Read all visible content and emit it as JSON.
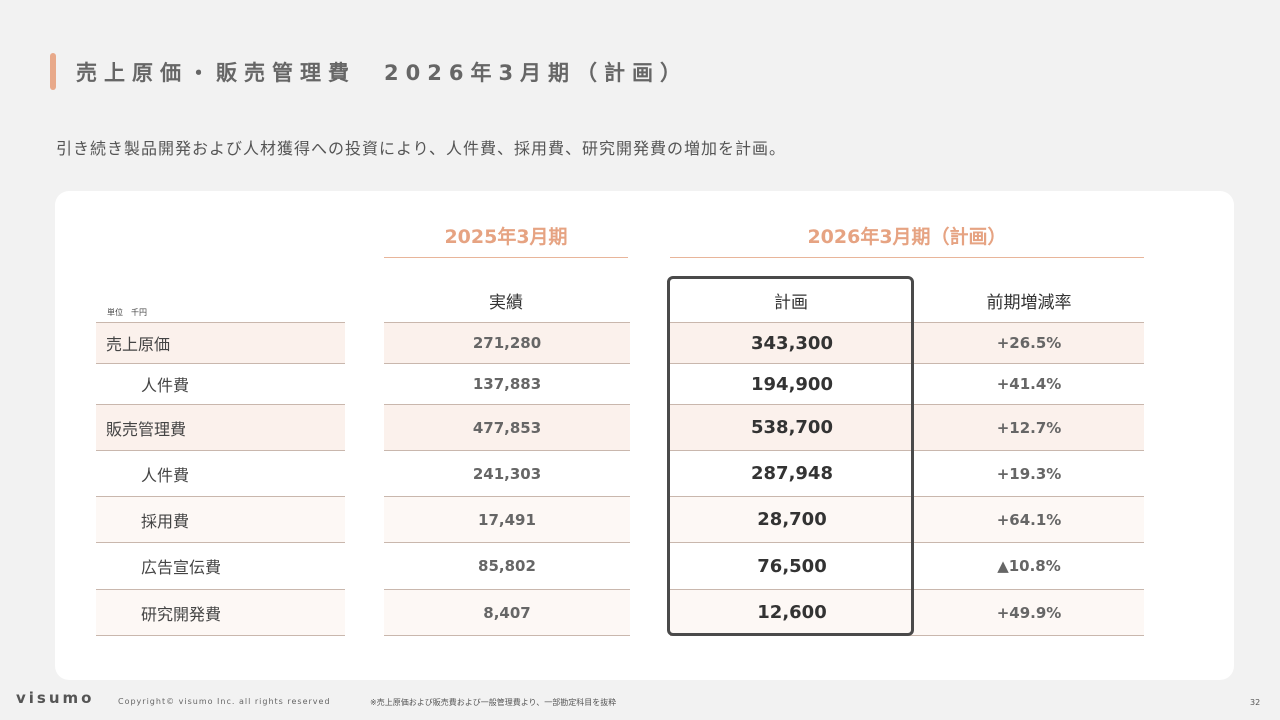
{
  "title": "売上原価・販売管理費　2026年3月期（計画）",
  "subtitle": "引き続き製品開発および人材獲得への投資により、人件費、採用費、研究開発費の増加を計画。",
  "table": {
    "unit": "単位　千円",
    "period_2025": "2025年3月期",
    "period_2026": "2026年3月期（計画）",
    "col_actual": "実績",
    "col_plan": "計画",
    "col_rate": "前期増減率",
    "rows": [
      {
        "label": "売上原価",
        "actual": "271,280",
        "plan": "343,300",
        "rate": "+26.5%"
      },
      {
        "label": "人件費",
        "actual": "137,883",
        "plan": "194,900",
        "rate": "+41.4%"
      },
      {
        "label": "販売管理費",
        "actual": "477,853",
        "plan": "538,700",
        "rate": "+12.7%"
      },
      {
        "label": "人件費",
        "actual": "241,303",
        "plan": "287,948",
        "rate": "+19.3%"
      },
      {
        "label": "採用費",
        "actual": "17,491",
        "plan": "28,700",
        "rate": "+64.1%"
      },
      {
        "label": "広告宣伝費",
        "actual": "85,802",
        "plan": "76,500",
        "rate": "▲10.8%"
      },
      {
        "label": "研究開発費",
        "actual": "8,407",
        "plan": "12,600",
        "rate": "+49.9%"
      }
    ]
  },
  "footer": {
    "logo": "visumo",
    "copyright": "Copyright© visumo Inc. all rights reserved",
    "note": "※売上原価および販売費および一般管理費より、一部勘定科目を抜粋",
    "page": "32"
  },
  "colors": {
    "accent": "#e8a98a",
    "row_highlight": "#fbf1ec",
    "background": "#f2f2f2"
  }
}
